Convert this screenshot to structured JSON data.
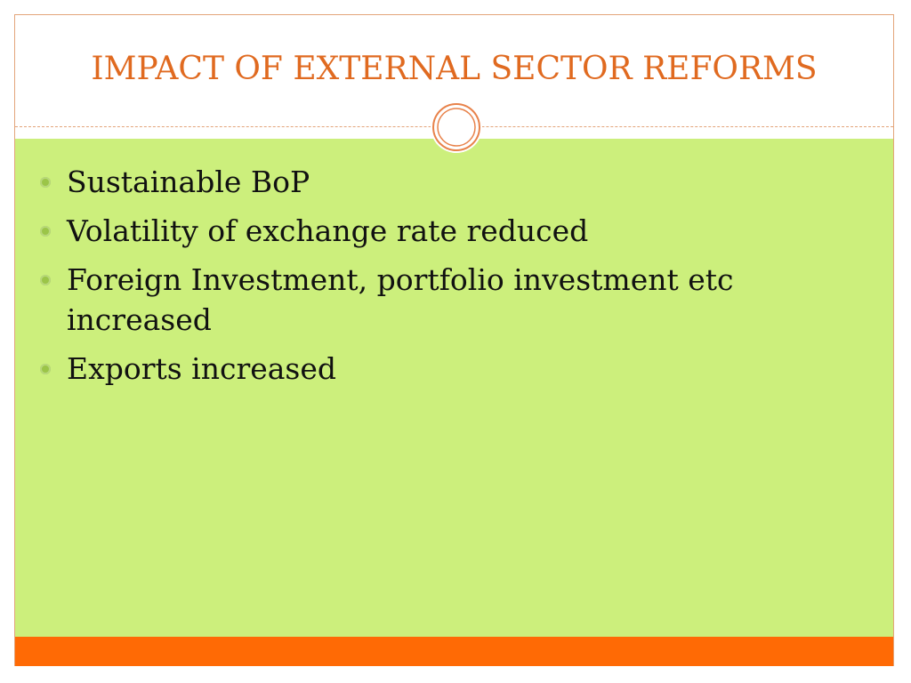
{
  "slide": {
    "title": "IMPACT OF EXTERNAL SECTOR REFORMS",
    "bullets": [
      "Sustainable BoP",
      "Volatility of exchange rate reduced",
      "Foreign Investment, portfolio investment etc increased",
      "Exports increased"
    ]
  },
  "colors": {
    "title": "#e06a20",
    "content_background": "#ccef7c",
    "footer_bar": "#ff6a05",
    "bullet": "#9bc548",
    "border": "#e3a57a"
  },
  "icons": {
    "ornament": "double-circle-ornament-icon",
    "bullet": "round-bullet-icon"
  }
}
